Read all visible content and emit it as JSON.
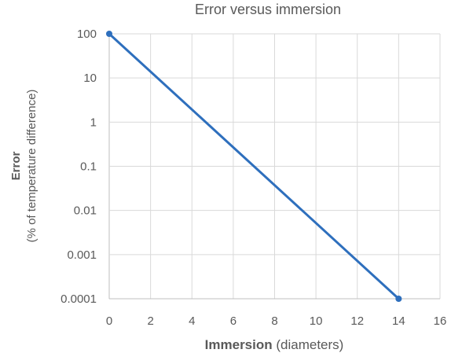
{
  "chart_data": {
    "type": "line",
    "title": "Error versus immersion",
    "xlabel_bold": "Immersion",
    "xlabel_rest": " (diameters)",
    "ylabel_line1": "Error",
    "ylabel_line2": "(% of temperature difference)",
    "xlim": [
      0,
      16
    ],
    "ylim": [
      0.0001,
      100
    ],
    "yscale": "log",
    "grid": true,
    "x_ticks": [
      0,
      2,
      4,
      6,
      8,
      10,
      12,
      14,
      16
    ],
    "y_ticks": [
      100,
      10,
      1,
      0.1,
      0.01,
      0.001,
      0.0001
    ],
    "y_tick_labels": [
      "100",
      "10",
      "1",
      "0.1",
      "0.01",
      "0.001",
      "0.0001"
    ],
    "series": [
      {
        "color": "#2e6fbd",
        "points": [
          {
            "x": 0,
            "y": 100
          },
          {
            "x": 14,
            "y": 0.0001
          }
        ]
      }
    ]
  }
}
